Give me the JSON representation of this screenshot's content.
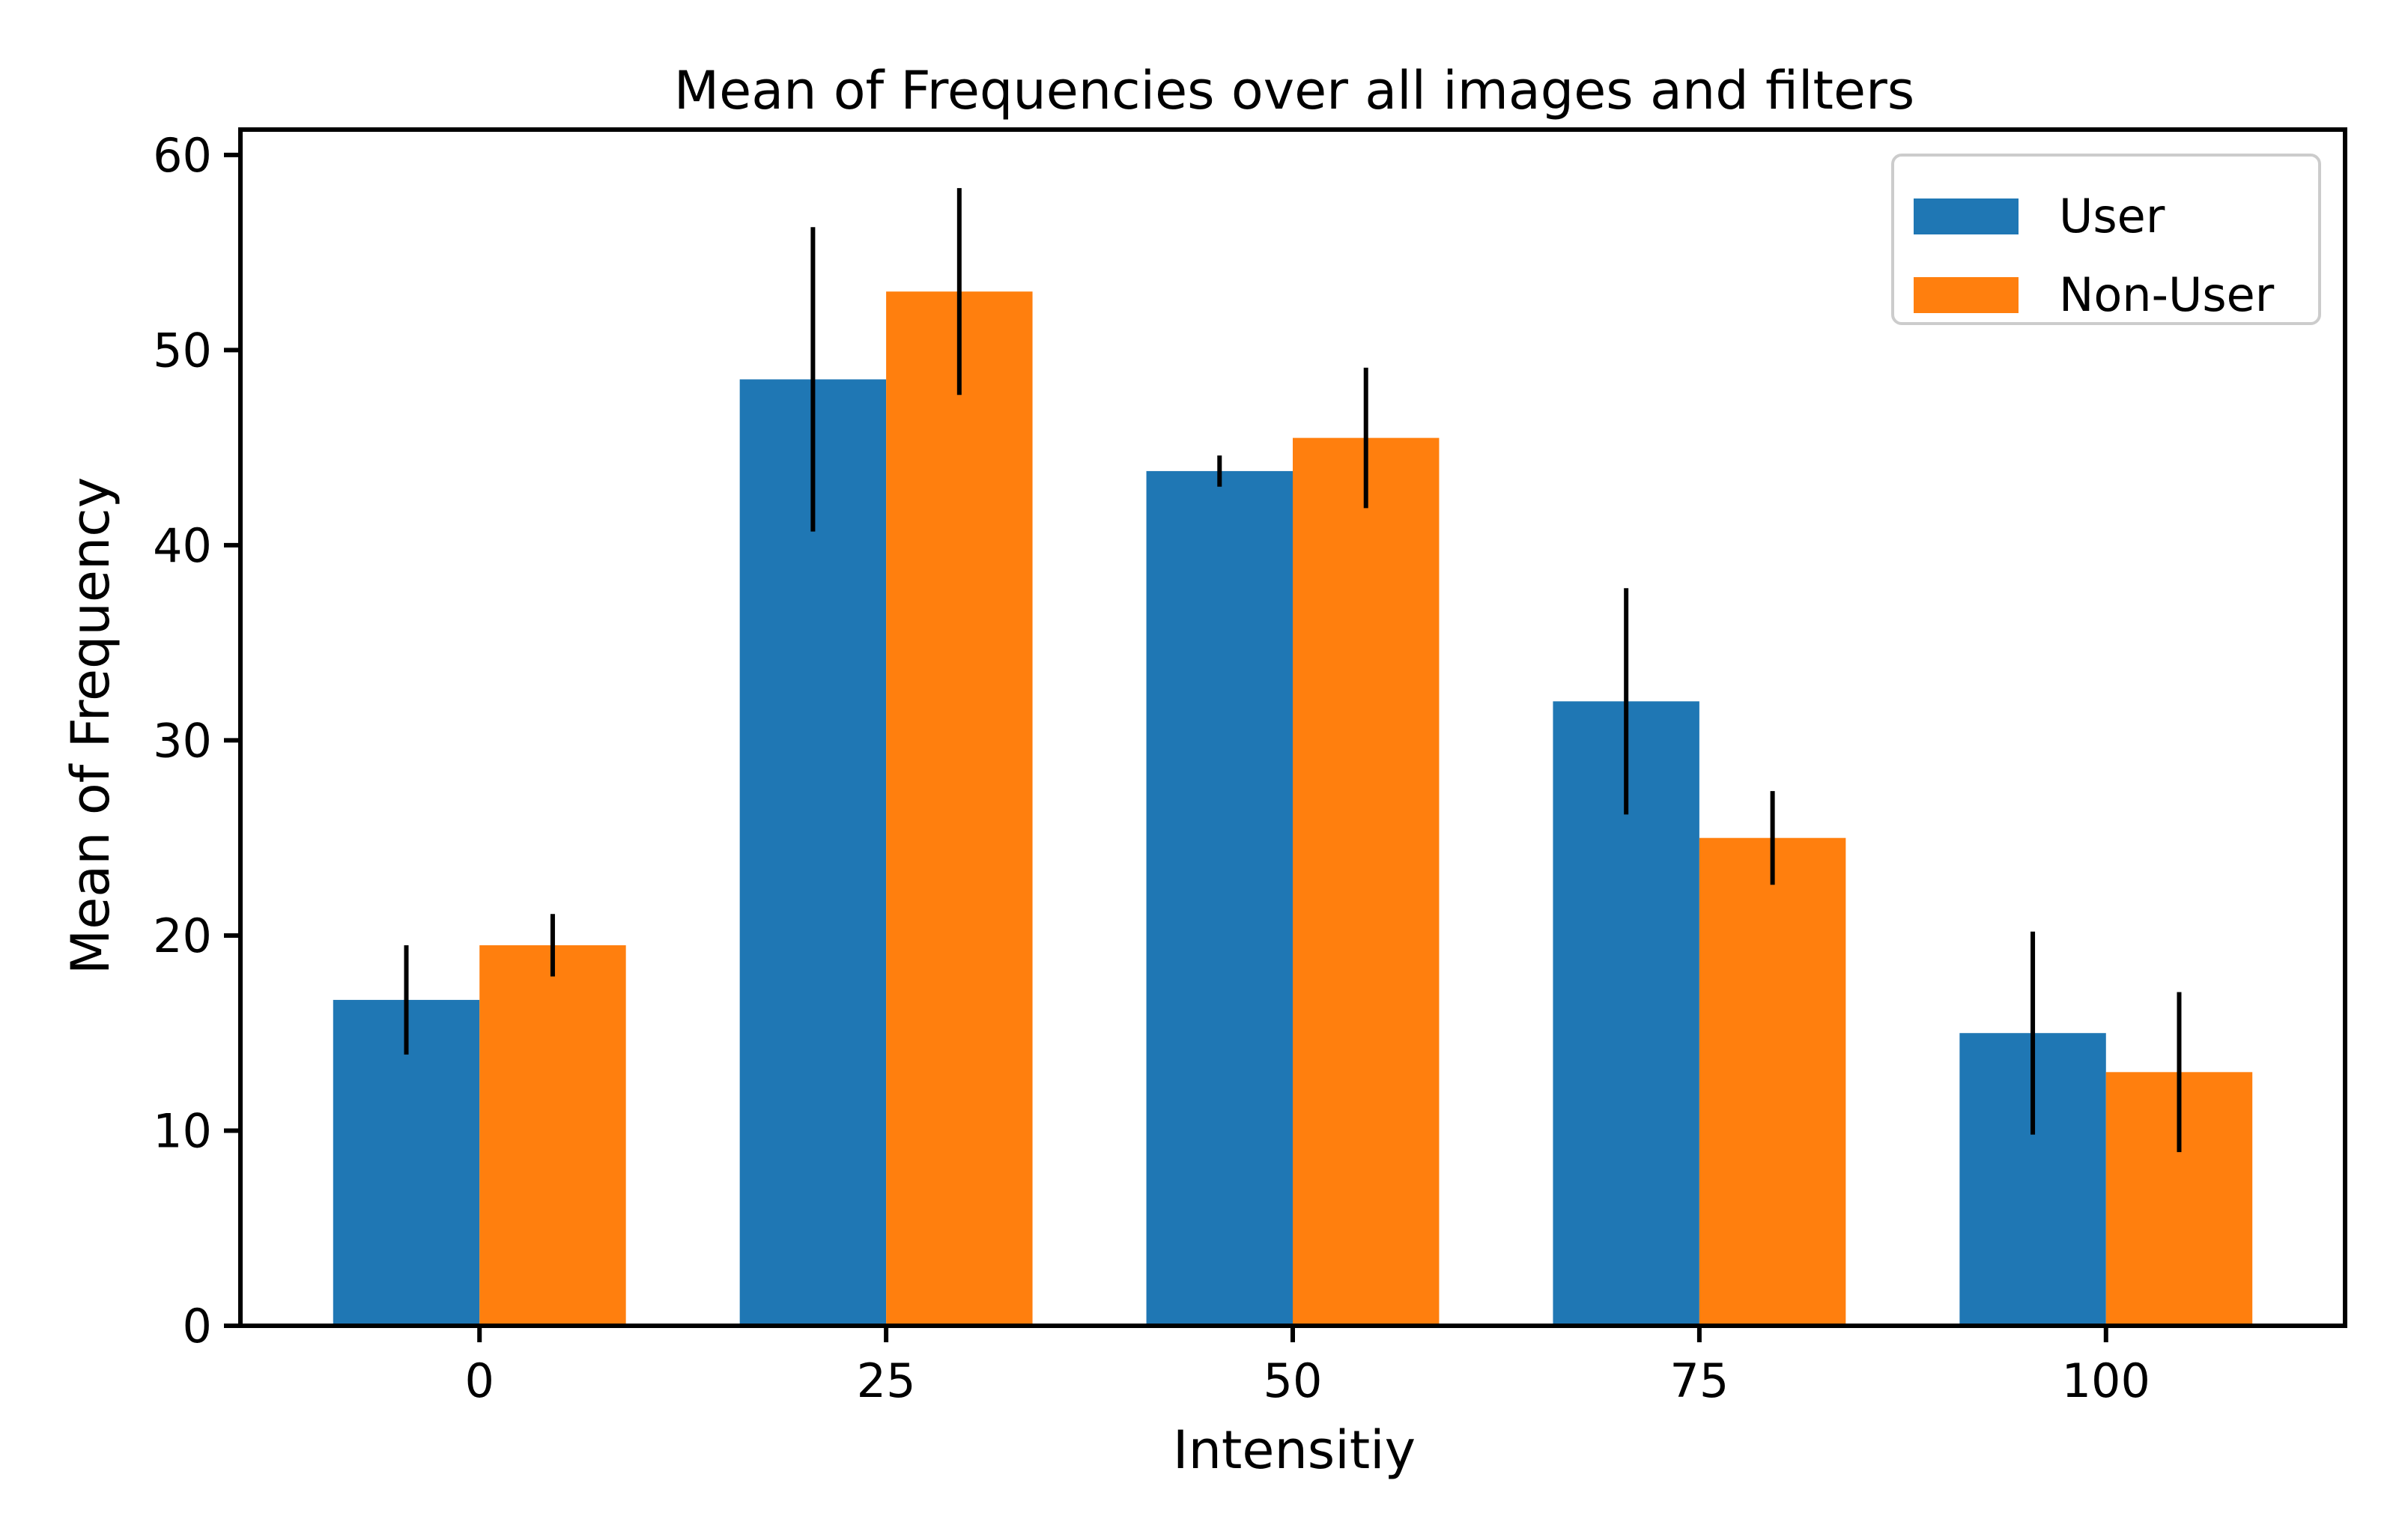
{
  "chart_data": {
    "type": "bar",
    "title": "Mean of Frequencies over all images and filters",
    "xlabel": "Intensitiy",
    "ylabel": "Mean of Frequency",
    "categories": [
      "0",
      "25",
      "50",
      "75",
      "100"
    ],
    "x_values": [
      0,
      25,
      50,
      75,
      100
    ],
    "ylim": [
      0,
      61.3
    ],
    "xlim": [
      -14.7,
      114.7
    ],
    "yticks": [
      0,
      10,
      20,
      30,
      40,
      50,
      60
    ],
    "grid": false,
    "legend_position": "top-right",
    "series": [
      {
        "name": "User",
        "color": "#1f77b4",
        "values": [
          16.7,
          48.5,
          43.8,
          32.0,
          15.0
        ],
        "error": [
          2.8,
          7.8,
          0.8,
          5.8,
          5.2
        ]
      },
      {
        "name": "Non-User",
        "color": "#ff7f0e",
        "values": [
          19.5,
          53.0,
          45.5,
          25.0,
          13.0
        ],
        "error": [
          1.6,
          5.3,
          3.6,
          2.4,
          4.1
        ]
      }
    ]
  }
}
